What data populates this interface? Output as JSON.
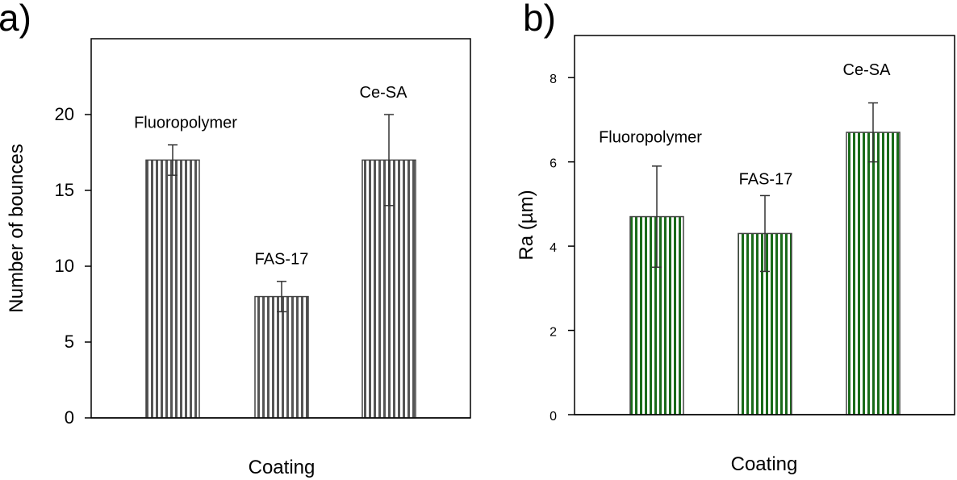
{
  "chart_data": [
    {
      "panel": "a)",
      "type": "bar",
      "xlabel": "Coating",
      "ylabel": "Number of bounces",
      "ylim": [
        0,
        25
      ],
      "yticks": [
        0,
        5,
        10,
        15,
        20
      ],
      "categories": [
        "Fluoropolymer",
        "FAS-17",
        "Ce-SA"
      ],
      "values": [
        17,
        8,
        17
      ],
      "errors": [
        1,
        1,
        3
      ],
      "bar_color": "#555555",
      "pattern": "vertical-stripes"
    },
    {
      "panel": "b)",
      "type": "bar",
      "xlabel": "Coating",
      "ylabel": "Ra (µm)",
      "ylim": [
        0,
        9
      ],
      "yticks": [
        0,
        2,
        4,
        6,
        8
      ],
      "categories": [
        "Fluoropolymer",
        "FAS-17",
        "Ce-SA"
      ],
      "values": [
        4.7,
        4.3,
        6.7
      ],
      "errors": [
        1.2,
        0.9,
        0.7
      ],
      "bar_color": "#1a6b1a",
      "pattern": "vertical-stripes"
    }
  ]
}
